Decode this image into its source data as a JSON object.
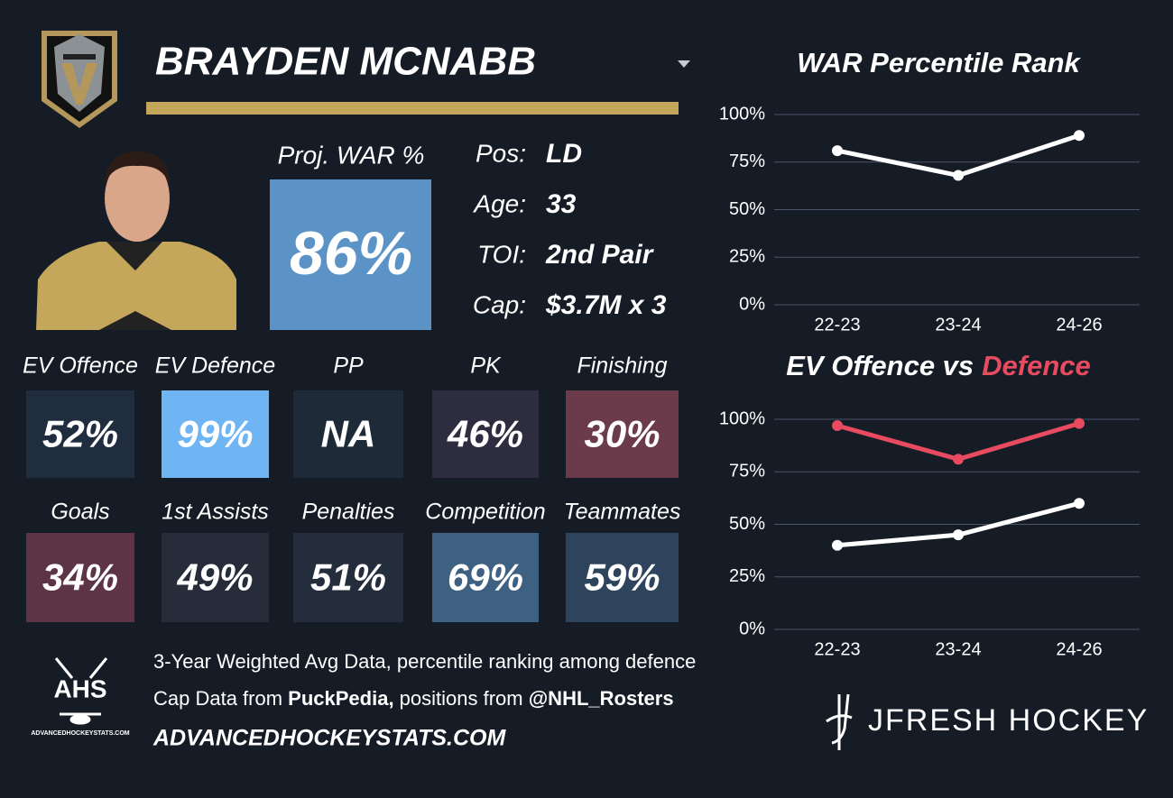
{
  "header": {
    "player_name": "BRAYDEN MCNABB"
  },
  "projection": {
    "label": "Proj. WAR %",
    "value": "86%",
    "color": "#5b93c7"
  },
  "bio": [
    {
      "label": "Pos:",
      "value": "LD"
    },
    {
      "label": "Age:",
      "value": "33"
    },
    {
      "label": "TOI:",
      "value": "2nd Pair"
    },
    {
      "label": "Cap:",
      "value": "$3.7M x 3"
    }
  ],
  "tiles": [
    [
      {
        "label": "EV Offence",
        "value": "52%",
        "color": "#1f2d3e"
      },
      {
        "label": "EV Defence",
        "value": "99%",
        "color": "#6fb5f3"
      },
      {
        "label": "PP",
        "value": "NA",
        "color": "#1f2a38"
      },
      {
        "label": "PK",
        "value": "46%",
        "color": "#2d2d3f"
      },
      {
        "label": "Finishing",
        "value": "30%",
        "color": "#6b3b4c"
      }
    ],
    [
      {
        "label": "Goals",
        "value": "34%",
        "color": "#5c3446"
      },
      {
        "label": "1st Assists",
        "value": "49%",
        "color": "#262c39"
      },
      {
        "label": "Penalties",
        "value": "51%",
        "color": "#232d3c"
      },
      {
        "label": "Competition",
        "value": "69%",
        "color": "#3e6081"
      },
      {
        "label": "Teammates",
        "value": "59%",
        "color": "#2e445d"
      }
    ]
  ],
  "footer": {
    "note": "3-Year Weighted Avg Data, percentile ranking among defence",
    "sources": [
      {
        "text": "Cap Data from ",
        "bold": false
      },
      {
        "text": "PuckPedia,",
        "bold": true
      },
      {
        "text": " positions from ",
        "bold": false
      },
      {
        "text": "@NHL_Rosters",
        "bold": true
      }
    ],
    "website": "ADVANCEDHOCKEYSTATS.COM",
    "logo_text": "AHS",
    "logo_caption": "ADVANCEDHOCKEYSTATS.COM",
    "brand": "JFRESH HOCKEY"
  },
  "chart_data": [
    {
      "type": "line",
      "title": [
        "WAR Percentile Rank"
      ],
      "title_colors": [
        "#ffffff"
      ],
      "categories": [
        "22-23",
        "23-24",
        "24-26"
      ],
      "series": [
        {
          "color": "#ffffff",
          "values": [
            81,
            68,
            89
          ]
        }
      ],
      "ylim": [
        0,
        100
      ],
      "yticks": [
        {
          "value": 0,
          "label": "0%"
        },
        {
          "value": 25,
          "label": "25%"
        },
        {
          "value": 50,
          "label": "50%"
        },
        {
          "value": 75,
          "label": "75%"
        },
        {
          "value": 100,
          "label": "100%"
        }
      ],
      "grid": true
    },
    {
      "type": "line",
      "title": [
        "EV Offence vs",
        "Defence"
      ],
      "title_colors": [
        "#ffffff",
        "#e84a5f"
      ],
      "categories": [
        "22-23",
        "23-24",
        "24-26"
      ],
      "series": [
        {
          "color": "#ffffff",
          "values": [
            40,
            45,
            60
          ]
        },
        {
          "color": "#e84a5f",
          "values": [
            97,
            81,
            98
          ]
        }
      ],
      "ylim": [
        0,
        100
      ],
      "yticks": [
        {
          "value": 0,
          "label": "0%"
        },
        {
          "value": 25,
          "label": "25%"
        },
        {
          "value": 50,
          "label": "50%"
        },
        {
          "value": 75,
          "label": "75%"
        },
        {
          "value": 100,
          "label": "100%"
        }
      ],
      "grid": true
    }
  ]
}
